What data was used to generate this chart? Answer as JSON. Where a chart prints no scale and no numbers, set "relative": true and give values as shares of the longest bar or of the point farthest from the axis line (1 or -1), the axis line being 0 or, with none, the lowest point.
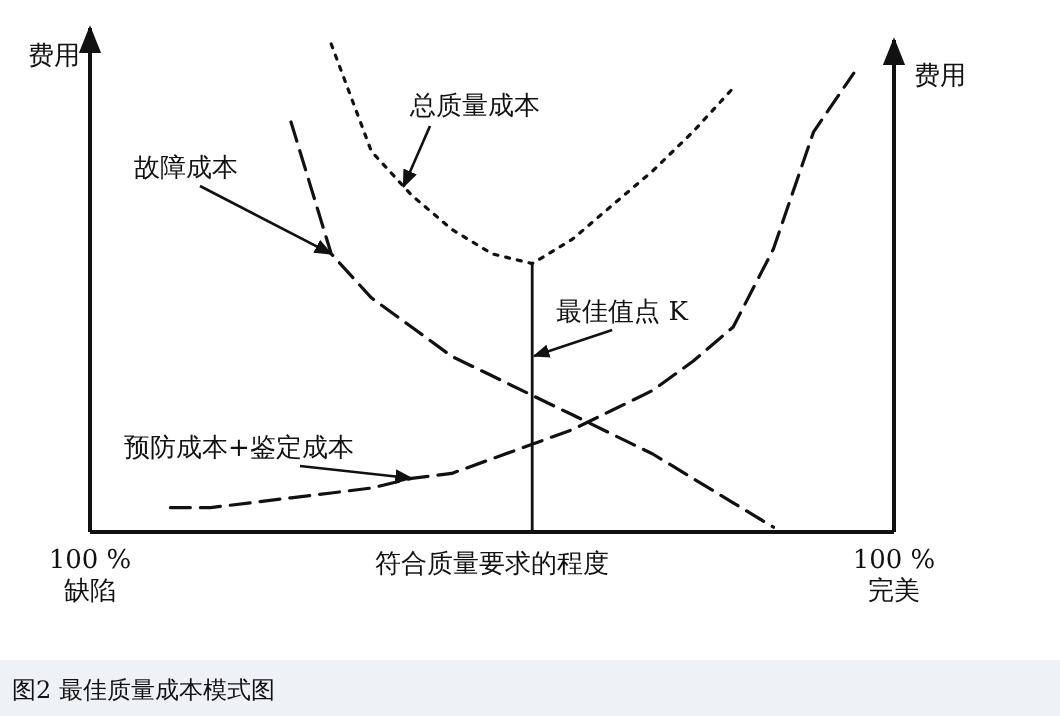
{
  "chart_data": {
    "type": "line",
    "relative": true,
    "categories": [
      "100 %\n缺陷",
      null,
      null,
      null,
      null,
      null,
      null,
      null,
      null,
      null,
      null,
      null,
      null,
      null,
      null,
      null,
      null,
      null,
      null,
      null,
      "100 %\n完美"
    ],
    "xlabel": "符合质量要求的程度",
    "ylabel": "费用",
    "y2label": "费用",
    "series": [
      {
        "name": "总质量成本",
        "color": "#111111",
        "line_style": "dotted",
        "values": [
          null,
          null,
          null,
          null,
          null,
          null,
          1.0,
          0.78,
          0.69,
          0.62,
          0.57,
          0.55,
          0.6,
          0.67,
          0.74,
          0.82,
          0.91,
          null,
          null,
          null,
          null
        ]
      },
      {
        "name": "故障成本",
        "color": "#111111",
        "line_style": "dashed",
        "values": [
          null,
          null,
          null,
          null,
          null,
          0.84,
          0.57,
          0.48,
          0.42,
          0.36,
          0.32,
          0.28,
          0.24,
          0.2,
          0.16,
          0.11,
          0.06,
          0.01,
          null,
          null,
          null
        ]
      },
      {
        "name": "预防成本+鉴定成本",
        "color": "#111111",
        "line_style": "dashed",
        "values": [
          null,
          null,
          0.05,
          0.05,
          0.06,
          0.07,
          0.08,
          0.09,
          0.11,
          0.12,
          0.15,
          0.18,
          0.21,
          0.25,
          0.29,
          0.35,
          0.42,
          0.58,
          0.82,
          0.94,
          null
        ]
      }
    ],
    "annotations": [
      "图2   最佳质量成本模式图",
      "最佳值点 K"
    ]
  }
}
